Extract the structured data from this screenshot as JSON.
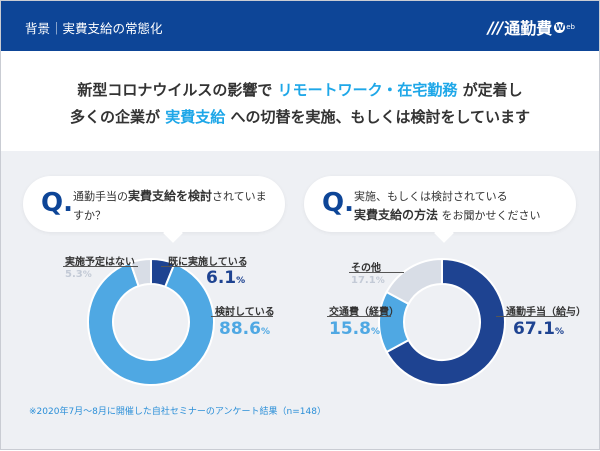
{
  "header": {
    "title": "背景｜実費支給の常態化",
    "logo_mark": "///",
    "logo_text": "通勤費",
    "logo_suffix_w": "W",
    "logo_suffix": "eb"
  },
  "headline": {
    "line1_pre": "新型コロナウイルスの影響で ",
    "line1_hl": "リモートワーク・在宅勤務",
    "line1_post": " が定着し",
    "line2_pre": "多くの企業が ",
    "line2_hl": "実費支給",
    "line2_post": " への切替を実施、もしくは検討をしています"
  },
  "colors": {
    "dark": "#1e4391",
    "light": "#4fa8e3",
    "gray": "#d8dde6",
    "header": "#0d4597"
  },
  "chart_data": [
    {
      "type": "pie",
      "question_mark": "Q.",
      "question_pre": "通勤手当の",
      "question_bold": "実費支給を検討",
      "question_post": "されていますか？",
      "slices": [
        {
          "label": "既に実施している",
          "value": 6.1,
          "color": "#1e4391"
        },
        {
          "label": "検討している",
          "value": 88.6,
          "color": "#4fa8e3"
        },
        {
          "label": "実施予定はない",
          "value": 5.3,
          "color": "#d8dde6"
        }
      ],
      "unit": "%"
    },
    {
      "type": "pie",
      "question_mark": "Q.",
      "question_pre": "実施、もしくは検討されている",
      "question_bold": "実費支給の方法",
      "question_post": " をお聞かせください",
      "slices": [
        {
          "label": "通勤手当（給与）",
          "value": 67.1,
          "color": "#1e4391"
        },
        {
          "label": "交通費（経費）",
          "value": 15.8,
          "color": "#4fa8e3"
        },
        {
          "label": "その他",
          "value": 17.1,
          "color": "#d8dde6"
        }
      ],
      "unit": "%"
    }
  ],
  "footnote": "※2020年7月～8月に開催した自社セミナーのアンケート結果（n=148）"
}
